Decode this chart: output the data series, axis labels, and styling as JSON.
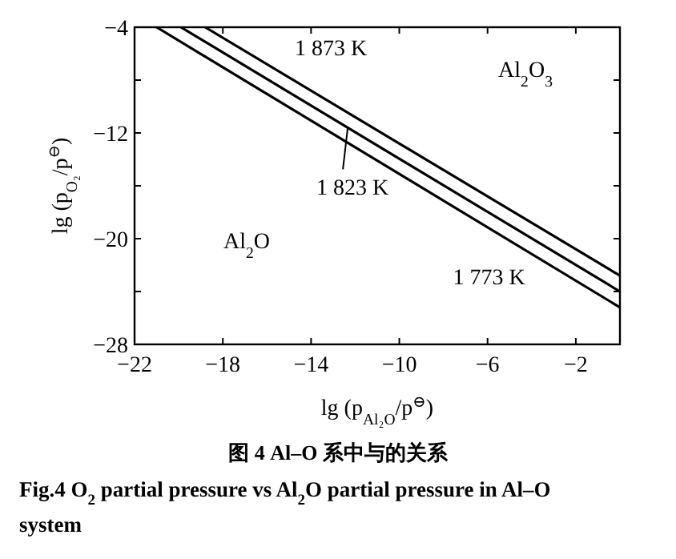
{
  "chart_data": {
    "type": "line",
    "title": "图 4 Al–O 系中与的关系",
    "subtitle": "Fig.4  O$_{2}$ partial pressure vs Al$_{2}$O partial pressure in Al–O system",
    "xlabel": "lg (p$_{Al₂O}$/p$^{⊖}$)",
    "ylabel": "lg (p$_{O₂}$/p$^{⊖}$)",
    "series": [
      {
        "name": "1 773 K",
        "color": "#000000",
        "x": [
          -21.0,
          0
        ],
        "values": [
          -4,
          -25.2
        ]
      },
      {
        "name": "1 823 K",
        "color": "#000000",
        "x": [
          -19.9,
          0
        ],
        "values": [
          -4,
          -24.0
        ]
      },
      {
        "name": "1 873 K",
        "color": "#000000",
        "x": [
          -18.8,
          0
        ],
        "values": [
          -4,
          -22.8
        ]
      }
    ],
    "xlim": [
      -22,
      0
    ],
    "xticks": [
      -22,
      -18,
      -14,
      -10,
      -6,
      -2
    ],
    "ylim": [
      -28,
      -4
    ],
    "yticks": [
      -4,
      {
        "value": -8,
        "label": null
      },
      -12,
      {
        "value": -16,
        "label": null
      },
      -20,
      {
        "value": -24,
        "label": null
      },
      -28
    ],
    "grid": false,
    "legend": "top",
    "marker": "none",
    "line_style": "solid",
    "annotations": [
      "Al$_{2}$O$_{3}$",
      "Al$_{2}$O"
    ]
  }
}
